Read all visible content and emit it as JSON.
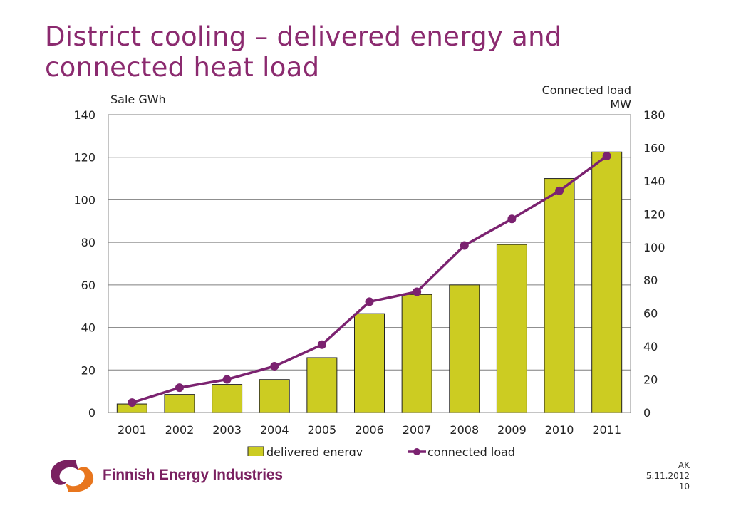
{
  "slide": {
    "title_line1": "District cooling – delivered energy and",
    "title_line2": "connected heat load"
  },
  "colors": {
    "title": "#8b2a6f",
    "bar": "#cccc22",
    "line": "#7b2270",
    "logo_orange": "#e8761e",
    "logo_purple": "#7a2060"
  },
  "footer": {
    "author": "AK",
    "date": "5.11.2012",
    "page": "10"
  },
  "logo": {
    "text": "Finnish Energy Industries"
  },
  "chart_data": {
    "type": "bar",
    "categories": [
      "2001",
      "2002",
      "2003",
      "2004",
      "2005",
      "2006",
      "2007",
      "2008",
      "2009",
      "2010",
      "2011"
    ],
    "series": [
      {
        "name": "delivered energy",
        "type": "bar",
        "axis": "left",
        "values": [
          4,
          8.5,
          13.2,
          15.5,
          25.8,
          46.5,
          55.5,
          60,
          79,
          110,
          122.5
        ]
      },
      {
        "name": "connected load",
        "type": "line",
        "axis": "right",
        "values": [
          6,
          15,
          20,
          28,
          41,
          67,
          73,
          101,
          117,
          134,
          155
        ]
      }
    ],
    "ylabel_left": "Sale GWh",
    "ylabel_right_line1": "Connected load",
    "ylabel_right_line2": "MW",
    "ylim_left": [
      0,
      140
    ],
    "ylim_right": [
      0,
      180
    ],
    "yticks_left": [
      "0",
      "20",
      "40",
      "60",
      "80",
      "100",
      "120",
      "140"
    ],
    "yticks_right": [
      "0",
      "20",
      "40",
      "60",
      "80",
      "100",
      "120",
      "140",
      "160",
      "180"
    ],
    "grid": true,
    "legend_position": "bottom"
  }
}
